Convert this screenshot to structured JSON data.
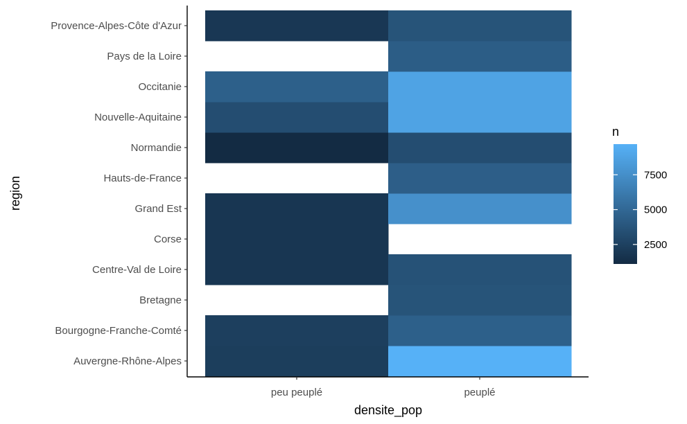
{
  "chart_data": {
    "type": "heatmap",
    "xlabel": "densite_pop",
    "ylabel": "region",
    "x_categories": [
      "peu peuplé",
      "peuplé"
    ],
    "y_categories": [
      "Auvergne-Rhône-Alpes",
      "Bourgogne-Franche-Comté",
      "Bretagne",
      "Centre-Val de Loire",
      "Corse",
      "Grand Est",
      "Hauts-de-France",
      "Normandie",
      "Nouvelle-Aquitaine",
      "Occitanie",
      "Pays de la Loire",
      "Provence-Alpes-Côte d'Azur"
    ],
    "cells": [
      {
        "x": "peu peuplé",
        "y": "Auvergne-Rhône-Alpes",
        "value": 2300
      },
      {
        "x": "peuplé",
        "y": "Auvergne-Rhône-Alpes",
        "value": 9700
      },
      {
        "x": "peu peuplé",
        "y": "Bourgogne-Franche-Comté",
        "value": 2400
      },
      {
        "x": "peuplé",
        "y": "Bourgogne-Franche-Comté",
        "value": 4500
      },
      {
        "x": "peuplé",
        "y": "Bretagne",
        "value": 3700
      },
      {
        "x": "peu peuplé",
        "y": "Centre-Val de Loire",
        "value": 1800
      },
      {
        "x": "peuplé",
        "y": "Centre-Val de Loire",
        "value": 3600
      },
      {
        "x": "peu peuplé",
        "y": "Corse",
        "value": 1800
      },
      {
        "x": "peu peuplé",
        "y": "Grand Est",
        "value": 1800
      },
      {
        "x": "peuplé",
        "y": "Grand Est",
        "value": 7600
      },
      {
        "x": "peuplé",
        "y": "Hauts-de-France",
        "value": 4400
      },
      {
        "x": "peu peuplé",
        "y": "Normandie",
        "value": 1100
      },
      {
        "x": "peuplé",
        "y": "Normandie",
        "value": 3300
      },
      {
        "x": "peu peuplé",
        "y": "Nouvelle-Aquitaine",
        "value": 3300
      },
      {
        "x": "peuplé",
        "y": "Nouvelle-Aquitaine",
        "value": 8800
      },
      {
        "x": "peu peuplé",
        "y": "Occitanie",
        "value": 4500
      },
      {
        "x": "peuplé",
        "y": "Occitanie",
        "value": 8800
      },
      {
        "x": "peuplé",
        "y": "Pays de la Loire",
        "value": 4300
      },
      {
        "x": "peu peuplé",
        "y": "Provence-Alpes-Côte d'Azur",
        "value": 1900
      },
      {
        "x": "peuplé",
        "y": "Provence-Alpes-Côte d'Azur",
        "value": 3700
      }
    ],
    "legend": {
      "title": "n",
      "placement": "right",
      "min": 1100,
      "max": 9700,
      "breaks": [
        2500,
        5000,
        7500
      ],
      "break_labels": [
        "2500",
        "5000",
        "7500"
      ],
      "color_low": "#132b43",
      "color_high": "#56b1f7"
    },
    "grid": false
  }
}
